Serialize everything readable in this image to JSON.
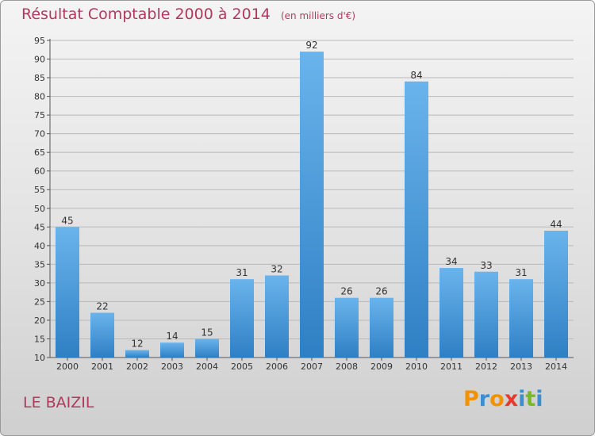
{
  "title": "Résultat Comptable 2000 à 2014",
  "unit": "(en milliers d'€)",
  "place": "LE BAIZIL",
  "logo": {
    "letters": [
      "P",
      "r",
      "o",
      "x",
      "i",
      "t",
      "i"
    ],
    "colors": [
      "#f39200",
      "#3a8fd0",
      "#f39200",
      "#e53a2f",
      "#3a8fd0",
      "#7ab828",
      "#3a8fd0"
    ]
  },
  "colors": {
    "bar_top": "#6ab4ec",
    "bar_bottom": "#2f7fc4",
    "grid": "#b9b9b9",
    "text": "#333333",
    "title": "#b03a5e"
  },
  "chart_data": {
    "type": "bar",
    "title": "Résultat Comptable 2000 à 2014",
    "ylabel": "en milliers d'€",
    "categories": [
      "2000",
      "2001",
      "2002",
      "2003",
      "2004",
      "2005",
      "2006",
      "2007",
      "2008",
      "2009",
      "2010",
      "2011",
      "2012",
      "2013",
      "2014"
    ],
    "values": [
      45,
      22,
      12,
      14,
      15,
      31,
      32,
      92,
      26,
      26,
      84,
      34,
      33,
      31,
      44
    ],
    "ylim": [
      10,
      95
    ],
    "yticks": [
      10,
      15,
      20,
      25,
      30,
      35,
      40,
      45,
      50,
      55,
      60,
      65,
      70,
      75,
      80,
      85,
      90,
      95
    ],
    "grid": true
  }
}
